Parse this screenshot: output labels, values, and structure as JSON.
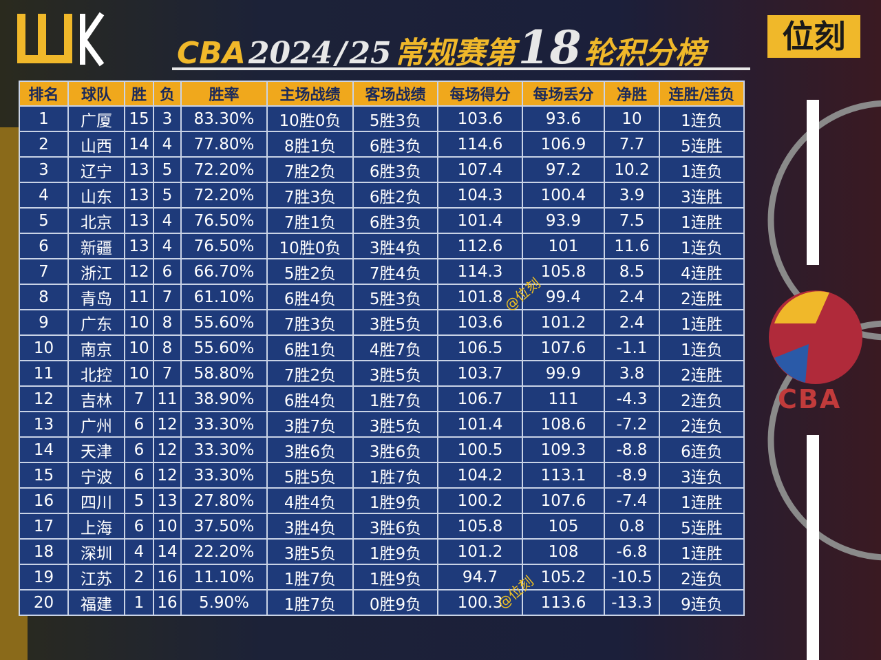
{
  "header": {
    "title_parts": [
      "CBA",
      "2024",
      "/",
      "25",
      "常规赛第",
      "18",
      "轮积分榜"
    ],
    "brand": "位刻"
  },
  "table": {
    "columns": [
      "排名",
      "球队",
      "胜",
      "负",
      "胜率",
      "主场战绩",
      "客场战绩",
      "每场得分",
      "每场丢分",
      "净胜",
      "连胜/连负"
    ],
    "rows": [
      [
        "1",
        "广厦",
        "15",
        "3",
        "83.30%",
        "10胜0负",
        "5胜3负",
        "103.6",
        "93.6",
        "10",
        "1连负"
      ],
      [
        "2",
        "山西",
        "14",
        "4",
        "77.80%",
        "8胜1负",
        "6胜3负",
        "114.6",
        "106.9",
        "7.7",
        "5连胜"
      ],
      [
        "3",
        "辽宁",
        "13",
        "5",
        "72.20%",
        "7胜2负",
        "6胜3负",
        "107.4",
        "97.2",
        "10.2",
        "1连负"
      ],
      [
        "4",
        "山东",
        "13",
        "5",
        "72.20%",
        "7胜3负",
        "6胜2负",
        "104.3",
        "100.4",
        "3.9",
        "3连胜"
      ],
      [
        "5",
        "北京",
        "13",
        "4",
        "76.50%",
        "7胜1负",
        "6胜3负",
        "101.4",
        "93.9",
        "7.5",
        "1连胜"
      ],
      [
        "6",
        "新疆",
        "13",
        "4",
        "76.50%",
        "10胜0负",
        "3胜4负",
        "112.6",
        "101",
        "11.6",
        "1连负"
      ],
      [
        "7",
        "浙江",
        "12",
        "6",
        "66.70%",
        "5胜2负",
        "7胜4负",
        "114.3",
        "105.8",
        "8.5",
        "4连胜"
      ],
      [
        "8",
        "青岛",
        "11",
        "7",
        "61.10%",
        "6胜4负",
        "5胜3负",
        "101.8",
        "99.4",
        "2.4",
        "2连胜"
      ],
      [
        "9",
        "广东",
        "10",
        "8",
        "55.60%",
        "7胜3负",
        "3胜5负",
        "103.6",
        "101.2",
        "2.4",
        "1连胜"
      ],
      [
        "10",
        "南京",
        "10",
        "8",
        "55.60%",
        "6胜1负",
        "4胜7负",
        "106.5",
        "107.6",
        "-1.1",
        "1连负"
      ],
      [
        "11",
        "北控",
        "10",
        "7",
        "58.80%",
        "7胜2负",
        "3胜5负",
        "103.7",
        "99.9",
        "3.8",
        "2连胜"
      ],
      [
        "12",
        "吉林",
        "7",
        "11",
        "38.90%",
        "6胜4负",
        "1胜7负",
        "106.7",
        "111",
        "-4.3",
        "2连负"
      ],
      [
        "13",
        "广州",
        "6",
        "12",
        "33.30%",
        "3胜7负",
        "3胜5负",
        "101.4",
        "108.6",
        "-7.2",
        "2连负"
      ],
      [
        "14",
        "天津",
        "6",
        "12",
        "33.30%",
        "3胜6负",
        "3胜6负",
        "100.5",
        "109.3",
        "-8.8",
        "6连负"
      ],
      [
        "15",
        "宁波",
        "6",
        "12",
        "33.30%",
        "5胜5负",
        "1胜7负",
        "104.2",
        "113.1",
        "-8.9",
        "3连负"
      ],
      [
        "16",
        "四川",
        "5",
        "13",
        "27.80%",
        "4胜4负",
        "1胜9负",
        "100.2",
        "107.6",
        "-7.4",
        "1连胜"
      ],
      [
        "17",
        "上海",
        "6",
        "10",
        "37.50%",
        "3胜4负",
        "3胜6负",
        "105.8",
        "105",
        "0.8",
        "5连胜"
      ],
      [
        "18",
        "深圳",
        "4",
        "14",
        "22.20%",
        "3胜5负",
        "1胜9负",
        "101.2",
        "108",
        "-6.8",
        "1连胜"
      ],
      [
        "19",
        "江苏",
        "2",
        "16",
        "11.10%",
        "1胜7负",
        "1胜9负",
        "94.7",
        "105.2",
        "-10.5",
        "2连负"
      ],
      [
        "20",
        "福建",
        "1",
        "16",
        "5.90%",
        "1胜7负",
        "0胜9负",
        "100.3",
        "113.6",
        "-13.3",
        "9连负"
      ]
    ]
  },
  "watermarks": [
    "@位刻",
    "@位刻"
  ],
  "logo": {
    "text": "CBA"
  }
}
